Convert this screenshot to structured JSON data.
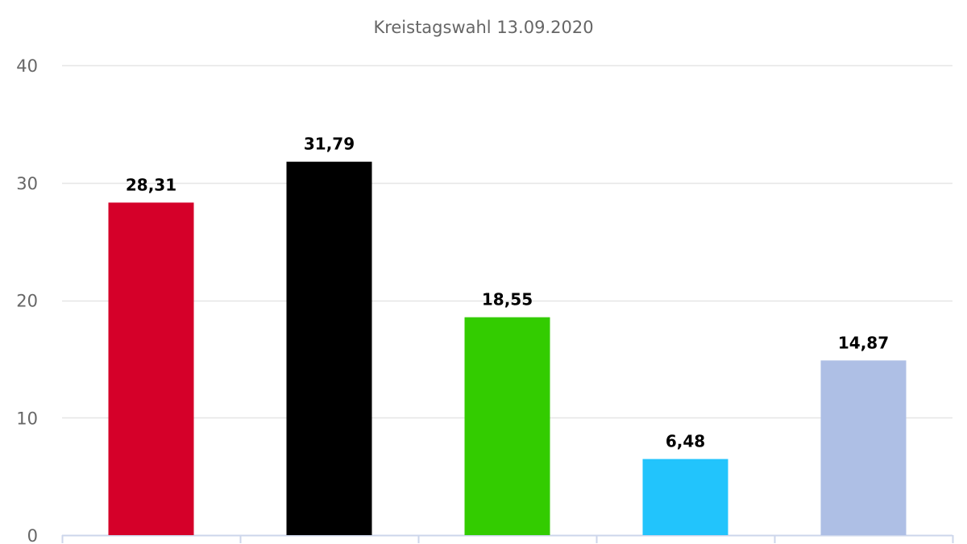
{
  "chart_data": {
    "type": "bar",
    "title": "Kreistagswahl 13.09.2020",
    "xlabel": "",
    "ylabel": "",
    "ylim": [
      0,
      40
    ],
    "yticks": [
      0,
      10,
      20,
      30,
      40
    ],
    "grid": true,
    "legend": "none",
    "categories": [
      "",
      "",
      "",
      "",
      ""
    ],
    "values": [
      28.31,
      31.79,
      18.55,
      6.48,
      14.87
    ],
    "value_labels": [
      "28,31",
      "31,79",
      "18,55",
      "6,48",
      "14,87"
    ],
    "colors": [
      "#d50029",
      "#000000",
      "#33cc00",
      "#22c4fc",
      "#aebfe5"
    ]
  }
}
